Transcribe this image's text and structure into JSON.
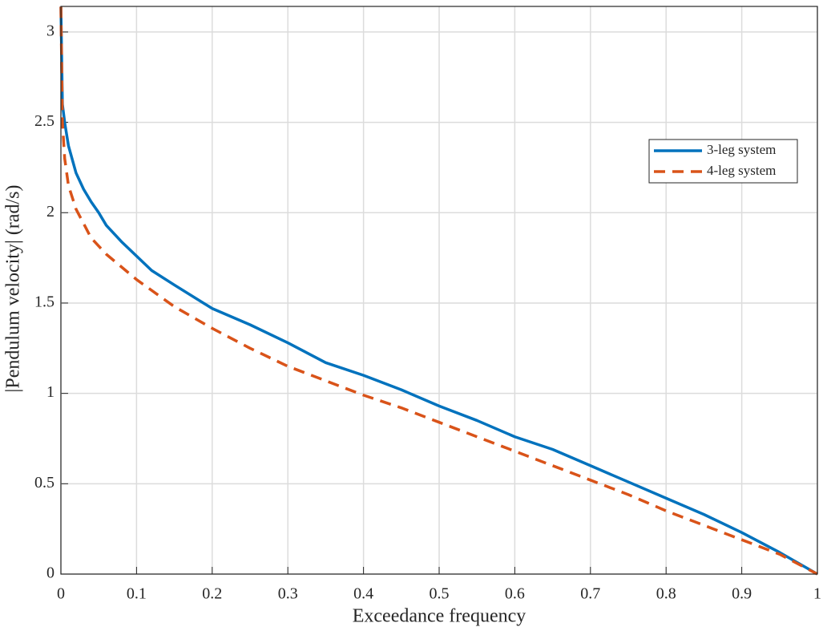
{
  "chart_data": {
    "type": "line",
    "xlabel": "Exceedance frequency",
    "ylabel": "|Pendulum velocity| (rad/s)",
    "xlim": [
      0,
      1
    ],
    "ylim": [
      0,
      3.1416
    ],
    "xticks": [
      0,
      0.1,
      0.2,
      0.3,
      0.4,
      0.5,
      0.6,
      0.7,
      0.8,
      0.9,
      1
    ],
    "yticks": [
      0,
      0.5,
      1,
      1.5,
      2,
      2.5,
      3
    ],
    "grid": true,
    "legend": "upper right",
    "series": [
      {
        "name": "3-leg system",
        "color": "#0072bd",
        "linestyle": "solid",
        "x": [
          0,
          0.002,
          0.005,
          0.01,
          0.02,
          0.03,
          0.04,
          0.05,
          0.06,
          0.08,
          0.1,
          0.12,
          0.15,
          0.2,
          0.25,
          0.3,
          0.35,
          0.4,
          0.45,
          0.5,
          0.55,
          0.6,
          0.65,
          0.7,
          0.75,
          0.8,
          0.85,
          0.9,
          0.95,
          1
        ],
        "values": [
          3.14,
          2.6,
          2.5,
          2.37,
          2.22,
          2.13,
          2.06,
          2.0,
          1.93,
          1.84,
          1.76,
          1.68,
          1.6,
          1.47,
          1.38,
          1.28,
          1.17,
          1.1,
          1.02,
          0.93,
          0.85,
          0.76,
          0.69,
          0.6,
          0.51,
          0.42,
          0.33,
          0.23,
          0.12,
          0
        ]
      },
      {
        "name": "4-leg system",
        "color": "#d95319",
        "linestyle": "dashed",
        "x": [
          0,
          0.002,
          0.005,
          0.01,
          0.02,
          0.04,
          0.06,
          0.08,
          0.1,
          0.15,
          0.2,
          0.25,
          0.3,
          0.35,
          0.4,
          0.45,
          0.5,
          0.55,
          0.6,
          0.65,
          0.7,
          0.75,
          0.8,
          0.85,
          0.9,
          0.95,
          1
        ],
        "values": [
          3.14,
          2.5,
          2.3,
          2.15,
          2.02,
          1.86,
          1.77,
          1.7,
          1.63,
          1.48,
          1.36,
          1.25,
          1.15,
          1.07,
          0.99,
          0.92,
          0.84,
          0.76,
          0.68,
          0.6,
          0.52,
          0.44,
          0.35,
          0.27,
          0.19,
          0.11,
          0
        ]
      }
    ]
  }
}
